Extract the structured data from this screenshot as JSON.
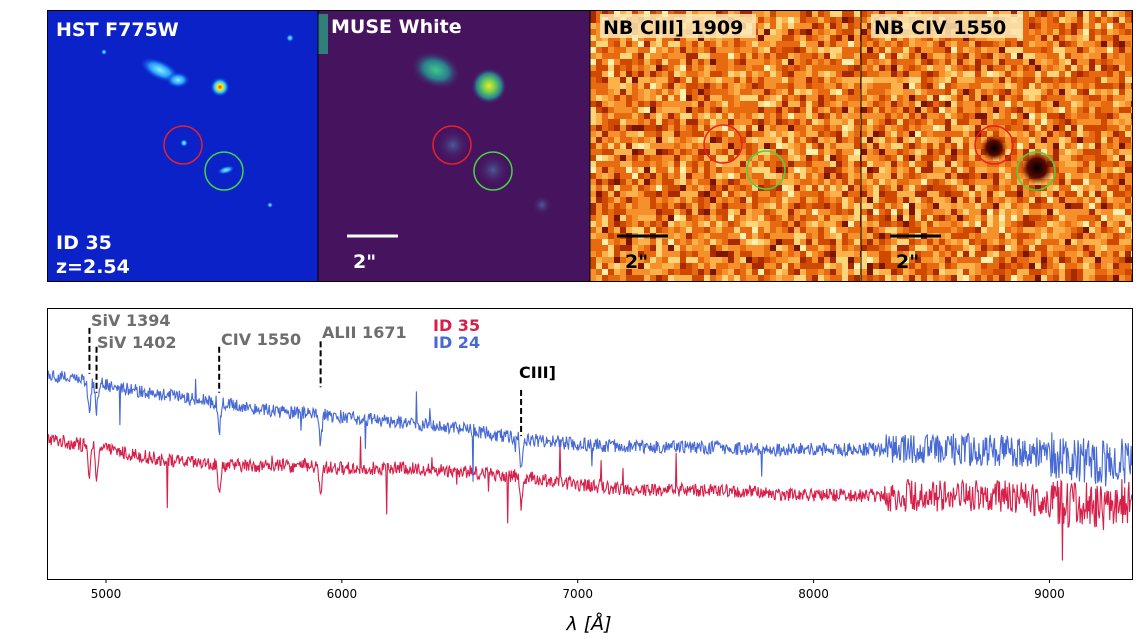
{
  "panels": {
    "hst": {
      "title": "HST F775W",
      "id_label": "ID 35",
      "z_label": "z=2.54"
    },
    "muse": {
      "title": "MUSE White",
      "scalebar_label": "2\""
    },
    "nb_ciii": {
      "title": "NB CIII] 1909",
      "scalebar_label": "2\""
    },
    "nb_civ": {
      "title": "NB CIV 1550",
      "scalebar_label": "2\""
    }
  },
  "colors": {
    "id35": "#d6204a",
    "id24": "#4769d4",
    "circle_red": "#e8202a",
    "circle_green": "#46d444",
    "line_labels": "#6e6e6e"
  },
  "chart_data": {
    "type": "line",
    "title": "",
    "xlabel": "λ [Å]",
    "ylabel": "",
    "xlim": [
      4750,
      9350
    ],
    "ylim": [
      0,
      1
    ],
    "xticks": [
      5000,
      6000,
      7000,
      8000,
      9000
    ],
    "xtick_labels": [
      "5000",
      "6000",
      "7000",
      "8000",
      "9000"
    ],
    "legend": {
      "position": "top-center",
      "entries": [
        "ID 35",
        "ID 24"
      ]
    },
    "series": [
      {
        "name": "ID 35",
        "color": "#d6204a",
        "x": [
          4750,
          5000,
          5250,
          5500,
          5750,
          6000,
          6250,
          6500,
          6750,
          7000,
          7250,
          7500,
          7750,
          8000,
          8250,
          8500,
          8750,
          9000,
          9250,
          9350
        ],
        "y": [
          0.52,
          0.48,
          0.44,
          0.42,
          0.42,
          0.41,
          0.41,
          0.4,
          0.38,
          0.35,
          0.33,
          0.33,
          0.32,
          0.31,
          0.31,
          0.31,
          0.31,
          0.29,
          0.26,
          0.3
        ]
      },
      {
        "name": "ID 24",
        "color": "#4769d4",
        "x": [
          4750,
          5000,
          5250,
          5500,
          5750,
          6000,
          6250,
          6500,
          6750,
          7000,
          7250,
          7500,
          7750,
          8000,
          8250,
          8500,
          8750,
          9000,
          9250,
          9350
        ],
        "y": [
          0.76,
          0.72,
          0.68,
          0.65,
          0.62,
          0.6,
          0.58,
          0.56,
          0.52,
          0.5,
          0.49,
          0.49,
          0.48,
          0.48,
          0.48,
          0.48,
          0.48,
          0.46,
          0.43,
          0.44
        ]
      }
    ],
    "line_markers": [
      {
        "label": "SiV 1394",
        "wavelength": 4930,
        "y_top": 0.93,
        "color": "#000000"
      },
      {
        "label": "SiV 1402",
        "wavelength": 4960,
        "y_top": 0.86,
        "color": "#000000"
      },
      {
        "label": "CIV 1550",
        "wavelength": 5480,
        "y_top": 0.86,
        "color": "#000000"
      },
      {
        "label": "ALII 1671",
        "wavelength": 5910,
        "y_top": 0.88,
        "color": "#000000"
      },
      {
        "label": "CIII]",
        "wavelength": 6760,
        "y_top": 0.7,
        "color": "#000000"
      }
    ]
  }
}
